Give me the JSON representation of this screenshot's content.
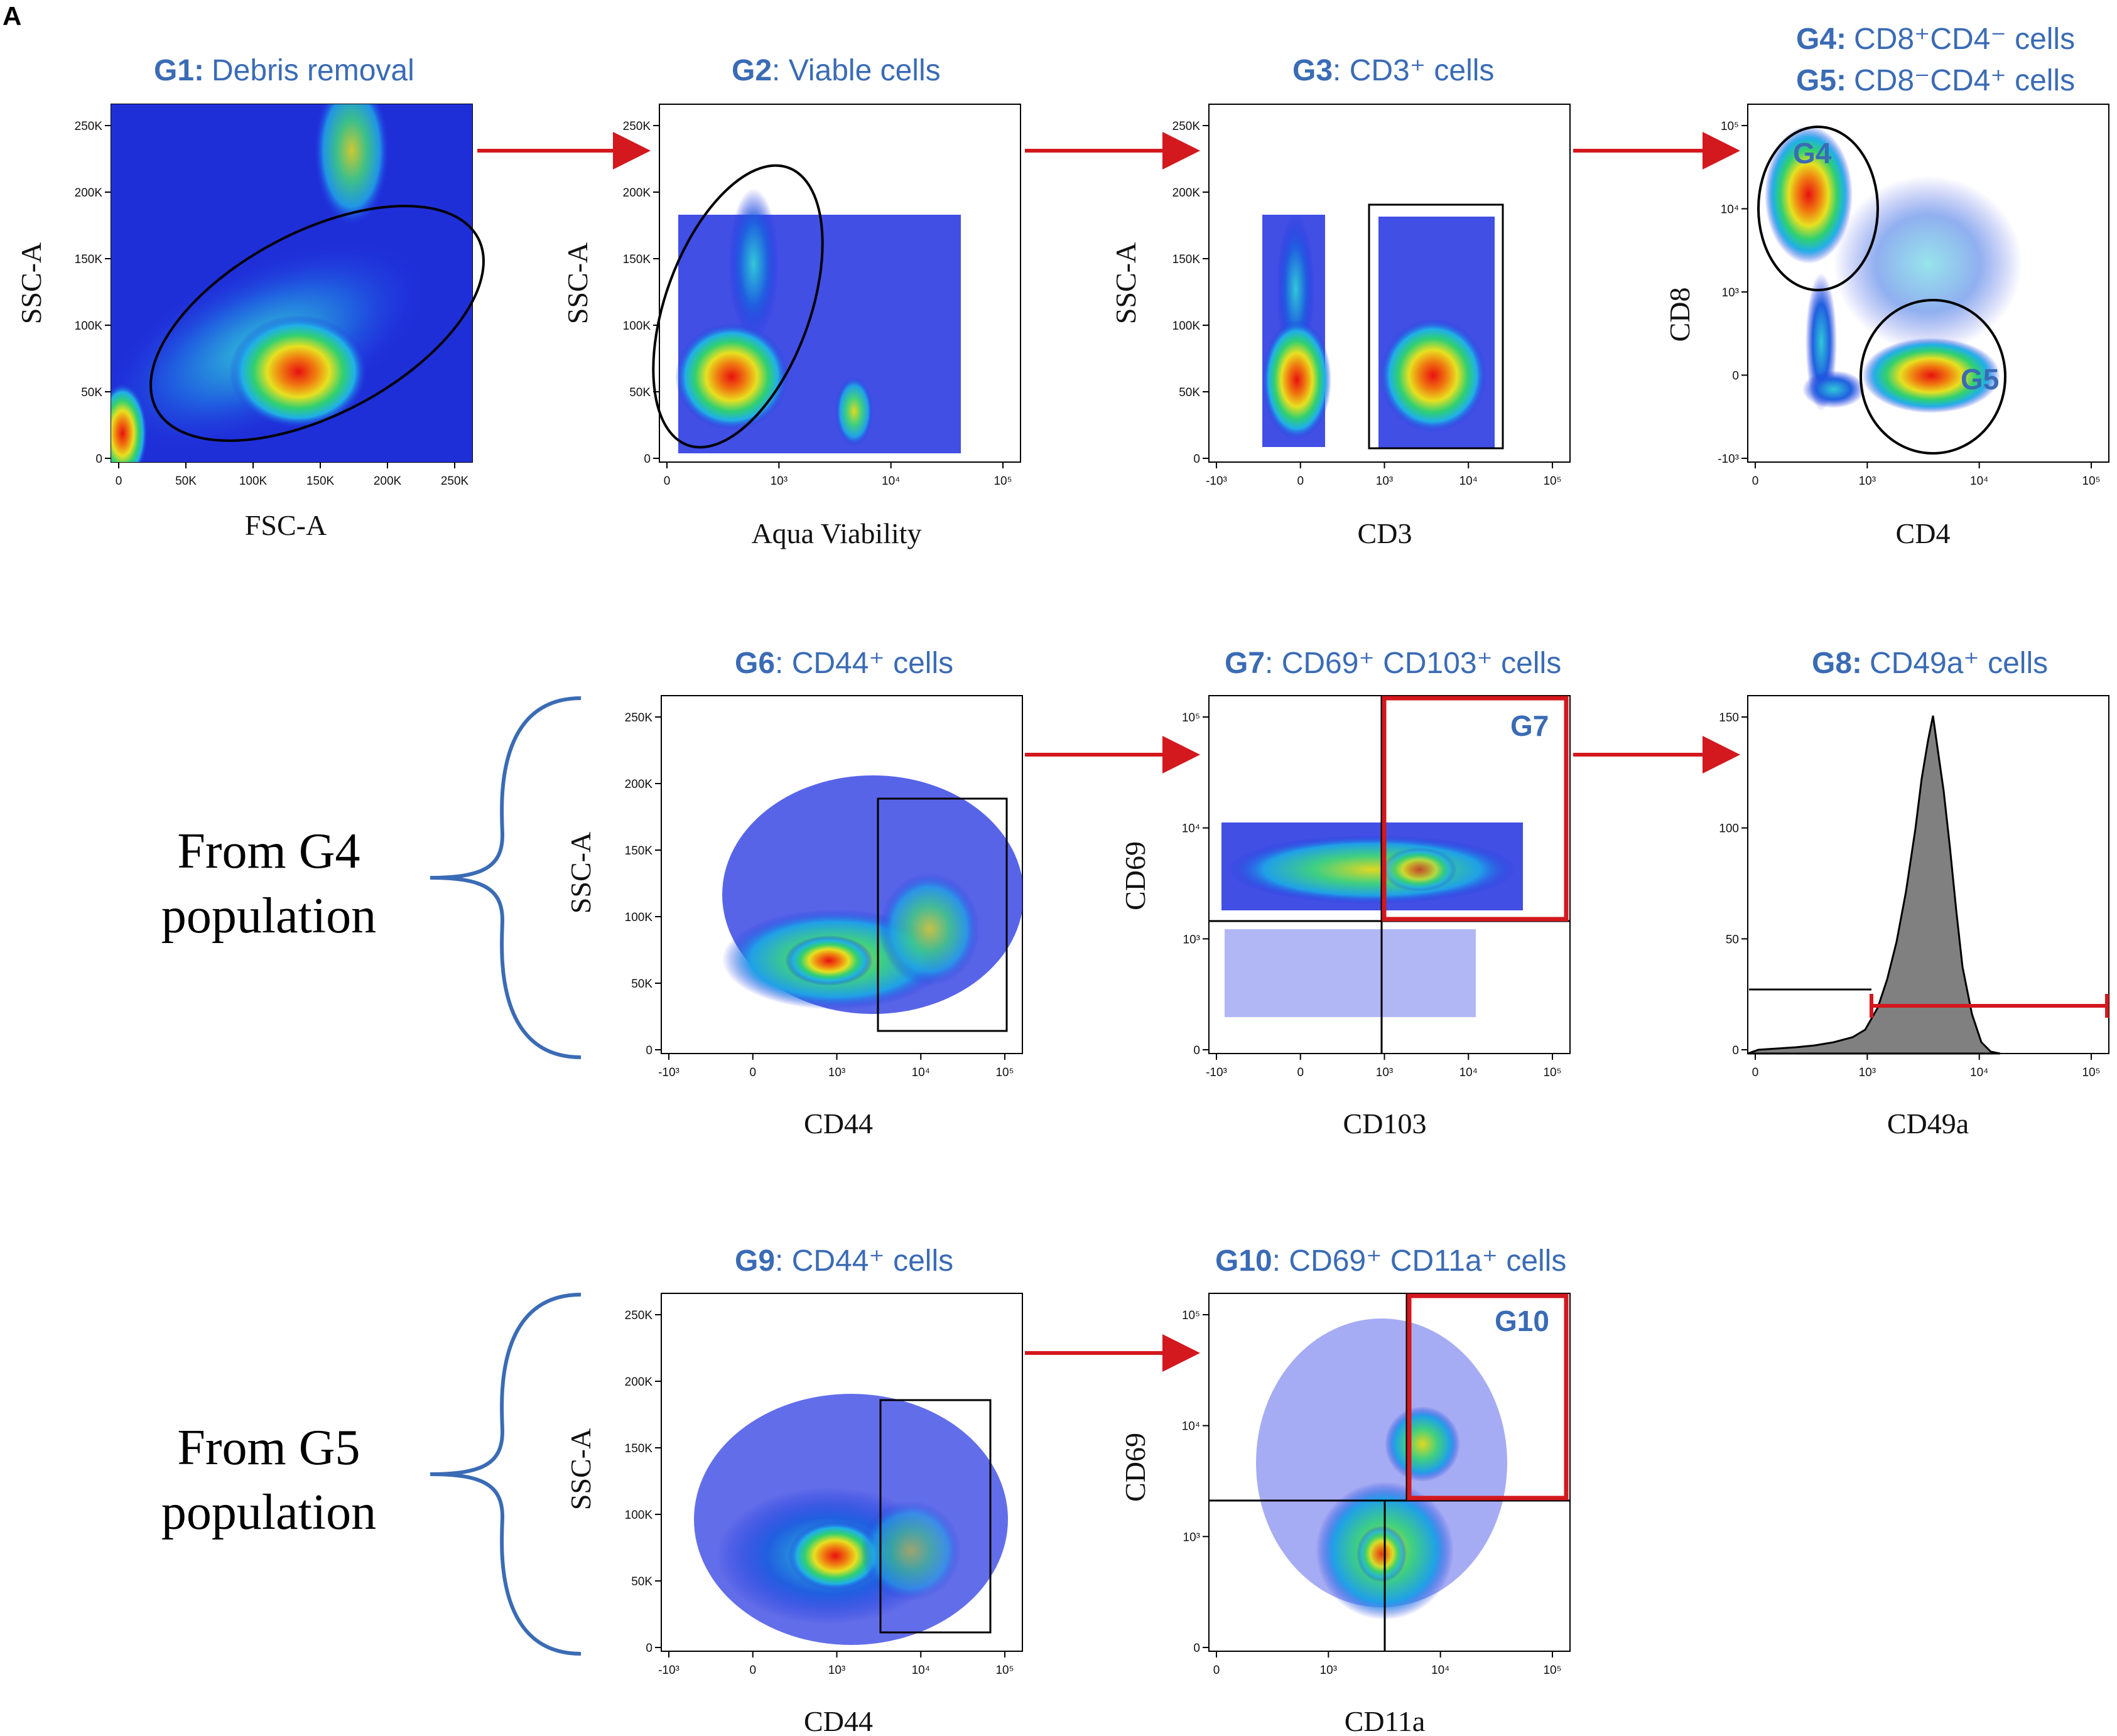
{
  "figure": {
    "panel_letter": "A",
    "from_g4": [
      "From G4",
      "population"
    ],
    "from_g5": [
      "From G5",
      "population"
    ]
  },
  "colors": {
    "title": "#3a6bb5",
    "arrow": "#d3181e",
    "gate": "#000000",
    "red_gate": "#d3181e",
    "histogram_fill": "#808080"
  },
  "panels": [
    {
      "id": "p1",
      "gate": "G1:",
      "title": "Debris removal",
      "xlabel": "FSC-A",
      "ylabel": "SSC-A",
      "xticks": [
        "0",
        "50K",
        "100K",
        "150K",
        "200K",
        "250K"
      ],
      "yticks": [
        "0",
        "50K",
        "100K",
        "150K",
        "200K",
        "250K"
      ]
    },
    {
      "id": "p2",
      "gate": "G2",
      "title": ": Viable cells",
      "xlabel": "Aqua Viability",
      "ylabel": "SSC-A",
      "xticks": [
        "0",
        "10³",
        "10⁴",
        "10⁵"
      ],
      "yticks": [
        "0",
        "50K",
        "100K",
        "150K",
        "200K",
        "250K"
      ]
    },
    {
      "id": "p3",
      "gate": "G3",
      "title": ": CD3⁺ cells",
      "xlabel": "CD3",
      "ylabel": "SSC-A",
      "xticks": [
        "-10³",
        "0",
        "10³",
        "10⁴",
        "10⁵"
      ],
      "yticks": [
        "0",
        "50K",
        "100K",
        "150K",
        "200K",
        "250K"
      ]
    },
    {
      "id": "p4",
      "gate": "G4:",
      "title": "CD8⁺CD4⁻ cells",
      "gate2": "G5:",
      "title2": "CD8⁻CD4⁺ cells",
      "xlabel": "CD4",
      "ylabel": "CD8",
      "xticks": [
        "0",
        "10³",
        "10⁴",
        "10⁵"
      ],
      "yticks": [
        "-10³",
        "0",
        "10³",
        "10⁴",
        "10⁵"
      ],
      "gate_labels": [
        "G4",
        "G5"
      ]
    },
    {
      "id": "p5",
      "gate": "G6",
      "title": ": CD44⁺ cells",
      "xlabel": "CD44",
      "ylabel": "SSC-A",
      "xticks": [
        "-10³",
        "0",
        "10³",
        "10⁴",
        "10⁵"
      ],
      "yticks": [
        "0",
        "50K",
        "100K",
        "150K",
        "200K",
        "250K"
      ]
    },
    {
      "id": "p6",
      "gate": "G7",
      "title": ": CD69⁺ CD103⁺ cells",
      "xlabel": "CD103",
      "ylabel": "CD69",
      "xticks": [
        "-10³",
        "0",
        "10³",
        "10⁴",
        "10⁵"
      ],
      "yticks": [
        "0",
        "10³",
        "10⁴",
        "10⁵"
      ],
      "gate_labels": [
        "G7"
      ]
    },
    {
      "id": "p7",
      "gate": "G8:",
      "title": "CD49a⁺ cells",
      "xlabel": "CD49a",
      "ylabel": "",
      "xticks": [
        "0",
        "10³",
        "10⁴",
        "10⁵"
      ],
      "yticks": [
        "0",
        "50",
        "100",
        "150"
      ]
    },
    {
      "id": "p8",
      "gate": "G9",
      "title": ": CD44⁺ cells",
      "xlabel": "CD44",
      "ylabel": "SSC-A",
      "xticks": [
        "-10³",
        "0",
        "10³",
        "10⁴",
        "10⁵"
      ],
      "yticks": [
        "0",
        "50K",
        "100K",
        "150K",
        "200K",
        "250K"
      ]
    },
    {
      "id": "p9",
      "gate": "G10",
      "title": ": CD69⁺ CD11a⁺ cells",
      "xlabel": "CD11a",
      "ylabel": "CD69",
      "xticks": [
        "0",
        "10³",
        "10⁴",
        "10⁵"
      ],
      "yticks": [
        "0",
        "10³",
        "10⁴",
        "10⁵"
      ],
      "gate_labels": [
        "G10"
      ]
    }
  ]
}
